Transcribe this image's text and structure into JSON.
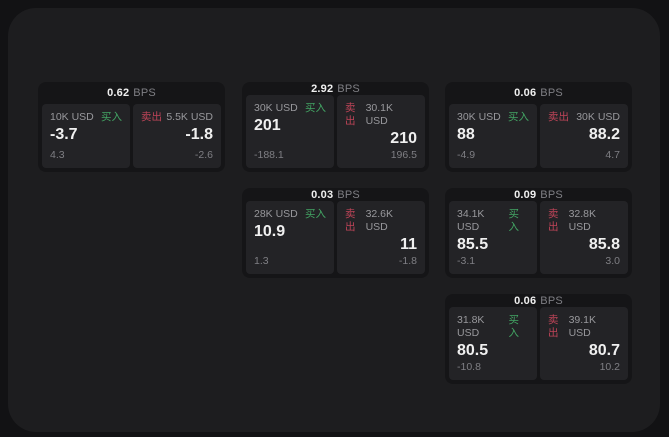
{
  "colors": {
    "outer_bg": "#121214",
    "panel_bg": "#1d1d1f",
    "card_bg": "#151517",
    "subpanel_bg": "#232326",
    "buy_green": "#43a564",
    "sell_red": "#bf4458",
    "text_primary": "#f0f0f0",
    "text_muted": "#98989c",
    "text_dim": "#7f7f84"
  },
  "labels": {
    "bps_unit": "BPS",
    "buy": "买入",
    "sell": "卖出"
  },
  "cards": [
    {
      "bps": "0.62",
      "buy": {
        "amount": "10K USD",
        "value": "-3.7",
        "delta": "4.3"
      },
      "sell": {
        "amount": "5.5K USD",
        "value": "-1.8",
        "delta": "-2.6"
      }
    },
    {
      "bps": "2.92",
      "buy": {
        "amount": "30K USD",
        "value": "201",
        "delta": "-188.1"
      },
      "sell": {
        "amount": "30.1K USD",
        "value": "210",
        "delta": "196.5"
      }
    },
    {
      "bps": "0.06",
      "buy": {
        "amount": "30K USD",
        "value": "88",
        "delta": "-4.9"
      },
      "sell": {
        "amount": "30K USD",
        "value": "88.2",
        "delta": "4.7"
      }
    },
    {
      "bps": "0.03",
      "buy": {
        "amount": "28K USD",
        "value": "10.9",
        "delta": "1.3"
      },
      "sell": {
        "amount": "32.6K USD",
        "value": "11",
        "delta": "-1.8"
      }
    },
    {
      "bps": "0.09",
      "buy": {
        "amount": "34.1K USD",
        "value": "85.5",
        "delta": "-3.1"
      },
      "sell": {
        "amount": "32.8K USD",
        "value": "85.8",
        "delta": "3.0"
      }
    },
    {
      "bps": "0.06",
      "buy": {
        "amount": "31.8K USD",
        "value": "80.5",
        "delta": "-10.8"
      },
      "sell": {
        "amount": "39.1K USD",
        "value": "80.7",
        "delta": "10.2"
      }
    }
  ]
}
